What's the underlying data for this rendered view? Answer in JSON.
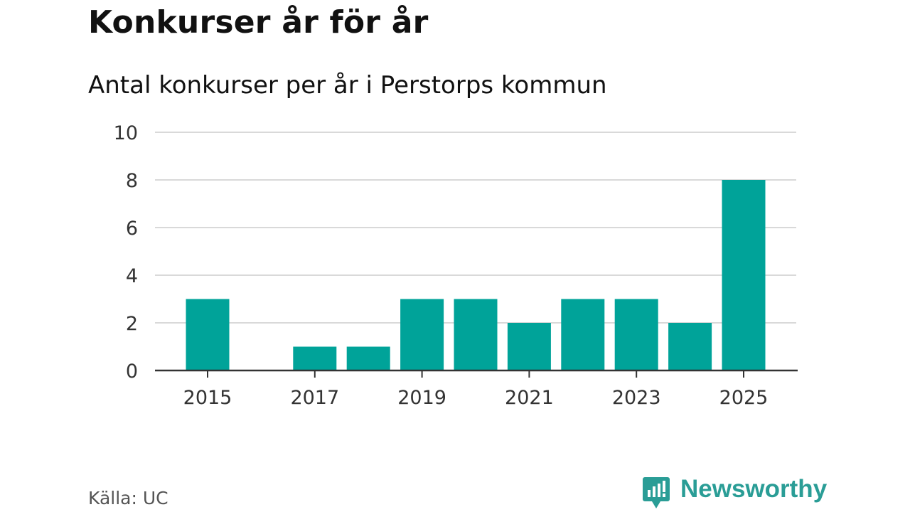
{
  "title": "Konkurser år för år",
  "subtitle": "Antal konkurser per år i Perstorps kommun",
  "source": "Källa: UC",
  "brand": {
    "name": "Newsworthy",
    "logo_icon": "newsworthy-logo-icon",
    "color": "#2a9d96"
  },
  "colors": {
    "bar": "#00a399",
    "grid": "#d9d9d9",
    "axis": "#333333",
    "tick_text": "#333333"
  },
  "chart_data": {
    "type": "bar",
    "title": "Konkurser år för år",
    "subtitle": "Antal konkurser per år i Perstorps kommun",
    "categories": [
      "2015",
      "2016",
      "2017",
      "2018",
      "2019",
      "2020",
      "2021",
      "2022",
      "2023",
      "2024",
      "2025"
    ],
    "values": [
      3,
      0,
      1,
      1,
      3,
      3,
      2,
      3,
      3,
      2,
      8
    ],
    "x_tick_labels": [
      "2015",
      "2017",
      "2019",
      "2021",
      "2023",
      "2025"
    ],
    "y_ticks": [
      0,
      2,
      4,
      6,
      8,
      10
    ],
    "ylim": [
      0,
      10
    ],
    "xlabel": "",
    "ylabel": "",
    "grid": true,
    "legend": "none"
  }
}
